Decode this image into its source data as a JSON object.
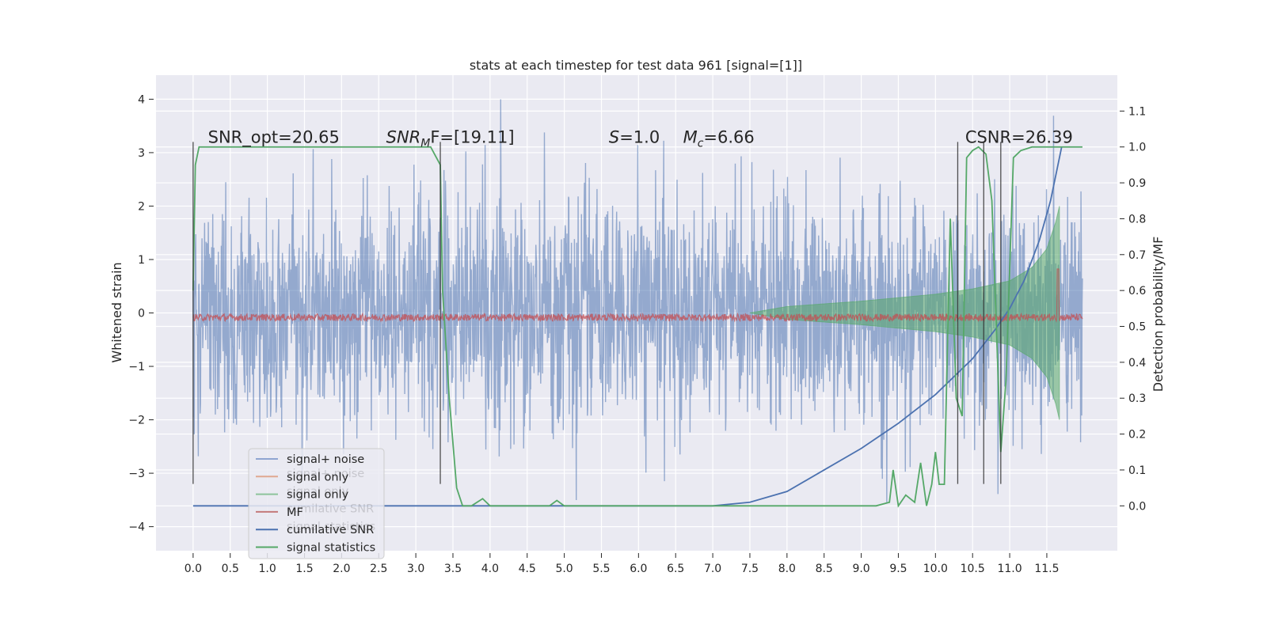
{
  "chart_data": {
    "type": "line",
    "title": "stats at each timestep for test data 961 [signal=[1]]",
    "ylabel": "Whitened strain",
    "y2label": "Detection probability/MF",
    "xlim": [
      -0.5,
      12.45
    ],
    "ylim": [
      -4.45,
      4.45
    ],
    "y2lim": [
      -0.125,
      1.2
    ],
    "grid": true,
    "x_ticks": [
      "0.0",
      "0.5",
      "1.0",
      "1.5",
      "2.0",
      "2.5",
      "3.0",
      "3.5",
      "4.0",
      "4.5",
      "5.0",
      "5.5",
      "6.0",
      "6.5",
      "7.0",
      "7.5",
      "8.0",
      "8.5",
      "9.0",
      "9.5",
      "10.0",
      "10.5",
      "11.0",
      "11.5"
    ],
    "y_ticks": [
      "4",
      "3",
      "2",
      "1",
      "0",
      "−1",
      "−2",
      "−3",
      "−4"
    ],
    "y2_ticks": [
      "1.1",
      "1.0",
      "0.9",
      "0.8",
      "0.7",
      "0.6",
      "0.5",
      "0.4",
      "0.3",
      "0.2",
      "0.1",
      "0.0"
    ],
    "annotations": [
      {
        "text": "SNR_opt=20.65",
        "x": 0.2
      },
      {
        "text": "SNR",
        "sub": "M",
        "suffix": "F=[19.11]",
        "x": 2.6,
        "italic": true
      },
      {
        "text": "S",
        "suffix": "=1.0",
        "x": 5.6,
        "italic": true
      },
      {
        "text": "M",
        "sub": "c",
        "suffix": "=6.66",
        "x": 6.6,
        "italic": true
      },
      {
        "text": "CSNR=26.39",
        "x": 10.4
      }
    ],
    "annot_y": 3.2,
    "vertical_markers": [
      0.0,
      3.33,
      10.3,
      10.65,
      10.88
    ],
    "legend": {
      "placement": "lower-left",
      "entries": [
        {
          "label": "signal+ noise",
          "color": "#8fa5d1"
        },
        {
          "label": "signal only",
          "color": "#e0a890"
        },
        {
          "label": "signal only",
          "color": "#8dc39b"
        },
        {
          "label": "MF",
          "color": "#c47a7a"
        },
        {
          "label": "cumilative SNR",
          "color": "#4c72b0"
        },
        {
          "label": "signal statistics",
          "color": "#55a868"
        }
      ],
      "ghost_entries": [
        {
          "label": "signal+ noise"
        },
        {
          "label": "signal only"
        },
        {
          "label": "cumilative SNR"
        },
        {
          "label": "signal statistics"
        }
      ]
    },
    "series": [
      {
        "name": "signal+ noise",
        "axis": "left",
        "color": "#4c72b0",
        "description": "whitened strain noise, roughly within ±2.5 with spikes to ±4",
        "x_range": [
          0.0,
          11.98
        ]
      },
      {
        "name": "signal only",
        "axis": "left",
        "color": "#55a868",
        "envelope": [
          [
            7.5,
            0.0
          ],
          [
            8.0,
            0.12
          ],
          [
            9.0,
            0.22
          ],
          [
            10.0,
            0.35
          ],
          [
            10.5,
            0.45
          ],
          [
            11.0,
            0.6
          ],
          [
            11.3,
            0.85
          ],
          [
            11.5,
            1.2
          ],
          [
            11.62,
            1.7
          ],
          [
            11.67,
            2.0
          ]
        ]
      },
      {
        "name": "MF",
        "axis": "right",
        "color": "#c44e52",
        "description": "matched-filter output near 0.51–0.53",
        "x_range": [
          0.0,
          11.98
        ],
        "peak": [
          11.65,
          0.66
        ]
      },
      {
        "name": "cumilative SNR",
        "axis": "right",
        "color": "#4c72b0",
        "x": [
          0.0,
          7.0,
          7.5,
          8.0,
          8.5,
          9.0,
          9.5,
          10.0,
          10.5,
          10.8,
          11.0,
          11.2,
          11.4,
          11.55,
          11.65,
          11.7
        ],
        "y": [
          0.0,
          0.0,
          0.01,
          0.04,
          0.1,
          0.16,
          0.23,
          0.31,
          0.41,
          0.49,
          0.55,
          0.63,
          0.74,
          0.85,
          0.95,
          1.0
        ]
      },
      {
        "name": "signal statistics",
        "axis": "right",
        "color": "#55a868",
        "x": [
          0.0,
          0.03,
          0.08,
          0.15,
          3.2,
          3.33,
          3.36,
          3.45,
          3.55,
          3.63,
          3.75,
          3.9,
          4.0,
          4.8,
          4.9,
          5.0,
          9.2,
          9.38,
          9.43,
          9.5,
          9.6,
          9.72,
          9.8,
          9.88,
          9.95,
          10.0,
          10.05,
          10.12,
          10.2,
          10.28,
          10.36,
          10.42,
          10.5,
          10.58,
          10.68,
          10.76,
          10.82,
          10.88,
          10.95,
          11.05,
          11.15,
          11.3,
          11.6,
          11.98
        ],
        "y": [
          0.6,
          0.95,
          1.0,
          1.0,
          1.0,
          0.95,
          0.6,
          0.3,
          0.05,
          0.0,
          0.0,
          0.02,
          0.0,
          0.0,
          0.015,
          0.0,
          0.0,
          0.01,
          0.1,
          0.0,
          0.03,
          0.01,
          0.12,
          0.0,
          0.06,
          0.15,
          0.06,
          0.06,
          0.8,
          0.3,
          0.25,
          0.97,
          0.99,
          1.0,
          0.98,
          0.85,
          0.5,
          0.15,
          0.35,
          0.97,
          0.99,
          1.0,
          1.0,
          1.0
        ]
      }
    ]
  }
}
